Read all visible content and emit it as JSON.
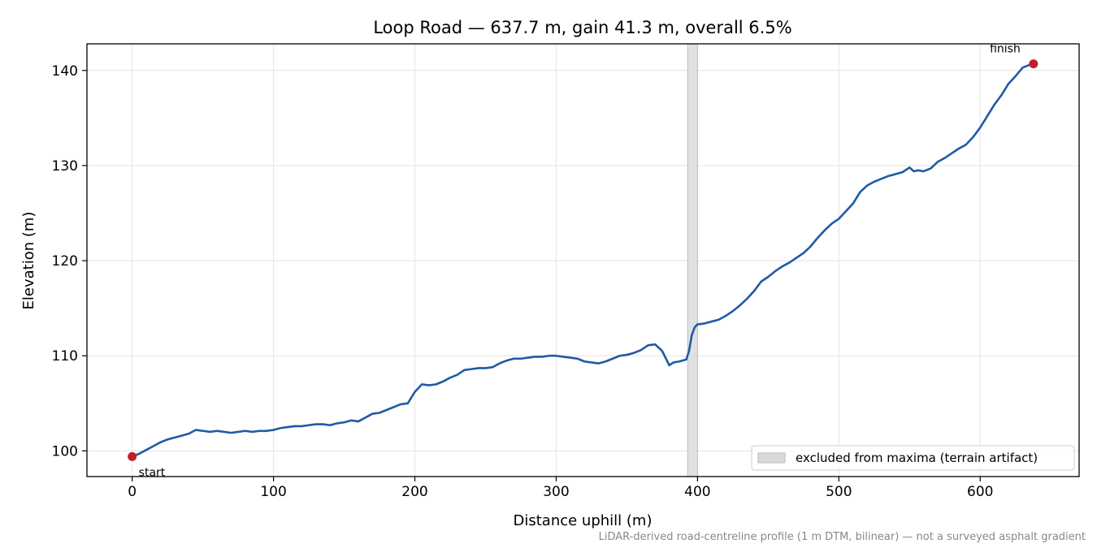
{
  "chart_data": {
    "type": "line",
    "title": "Loop Road — 637.7 m, gain 41.3 m, overall 6.5%",
    "xlabel": "Distance uphill (m)",
    "ylabel": "Elevation (m)",
    "xlim": [
      -32,
      670
    ],
    "ylim": [
      97.3,
      142.8
    ],
    "xticks": [
      0,
      100,
      200,
      300,
      400,
      500,
      600
    ],
    "yticks": [
      100,
      110,
      120,
      130,
      140
    ],
    "grid": true,
    "line_color": "#1f5aa6",
    "marker_color": "#c0202a",
    "band_color": "#d9d9d9",
    "series": [
      {
        "x": [
          0,
          5,
          10,
          15,
          20,
          25,
          30,
          35,
          40,
          45,
          50,
          55,
          60,
          65,
          70,
          75,
          80,
          85,
          90,
          95,
          100,
          105,
          110,
          115,
          120,
          125,
          130,
          135,
          140,
          145,
          150,
          155,
          160,
          165,
          170,
          175,
          180,
          185,
          190,
          195,
          200,
          205,
          210,
          215,
          220,
          225,
          230,
          235,
          240,
          245,
          250,
          255,
          260,
          265,
          270,
          275,
          280,
          285,
          290,
          295,
          300,
          305,
          310,
          315,
          320,
          325,
          330,
          335,
          340,
          345,
          350,
          355,
          360,
          365,
          370,
          375,
          380,
          383,
          387,
          392,
          394,
          396,
          398,
          400,
          405,
          410,
          415,
          420,
          425,
          430,
          435,
          440,
          445,
          450,
          455,
          460,
          465,
          470,
          475,
          480,
          485,
          490,
          495,
          500,
          505,
          510,
          515,
          520,
          525,
          530,
          535,
          540,
          545,
          550,
          553,
          556,
          560,
          565,
          570,
          575,
          580,
          585,
          590,
          595,
          600,
          605,
          610,
          615,
          620,
          625,
          630,
          635,
          637.7
        ],
        "y": [
          99.4,
          99.7,
          100.1,
          100.5,
          100.9,
          101.2,
          101.4,
          101.6,
          101.8,
          102.2,
          102.1,
          102.0,
          102.1,
          102.0,
          101.9,
          102.0,
          102.1,
          102.0,
          102.1,
          102.1,
          102.2,
          102.4,
          102.5,
          102.6,
          102.6,
          102.7,
          102.8,
          102.8,
          102.7,
          102.9,
          103.0,
          103.2,
          103.1,
          103.5,
          103.9,
          104.0,
          104.3,
          104.6,
          104.9,
          105.0,
          106.2,
          107.0,
          106.9,
          107.0,
          107.3,
          107.7,
          108.0,
          108.5,
          108.6,
          108.7,
          108.7,
          108.8,
          109.2,
          109.5,
          109.7,
          109.7,
          109.8,
          109.9,
          109.9,
          110.0,
          110.0,
          109.9,
          109.8,
          109.7,
          109.4,
          109.3,
          109.2,
          109.4,
          109.7,
          110.0,
          110.1,
          110.3,
          110.6,
          111.1,
          111.2,
          110.5,
          109.0,
          109.3,
          109.4,
          109.6,
          110.5,
          112.2,
          113.0,
          113.3,
          113.4,
          113.6,
          113.8,
          114.2,
          114.7,
          115.3,
          116.0,
          116.8,
          117.8,
          118.3,
          118.9,
          119.4,
          119.8,
          120.3,
          120.8,
          121.5,
          122.4,
          123.2,
          123.9,
          124.4,
          125.2,
          126.0,
          127.2,
          127.9,
          128.3,
          128.6,
          128.9,
          129.1,
          129.3,
          129.8,
          129.4,
          129.5,
          129.4,
          129.7,
          130.4,
          130.8,
          131.3,
          131.8,
          132.2,
          133.0,
          134.0,
          135.2,
          136.4,
          137.4,
          138.6,
          139.4,
          140.3,
          140.6,
          140.7
        ]
      }
    ],
    "excluded_band": [
      393,
      400
    ],
    "markers": [
      {
        "x": 0,
        "y": 99.4,
        "label": "start"
      },
      {
        "x": 637.7,
        "y": 140.7,
        "label": "finish"
      }
    ],
    "legend": {
      "placement": "lower-right",
      "entries": [
        {
          "label": "excluded from maxima (terrain artifact)"
        }
      ]
    },
    "footnote": "LiDAR-derived road-centreline profile (1 m DTM, bilinear) — not a surveyed asphalt gradient"
  }
}
